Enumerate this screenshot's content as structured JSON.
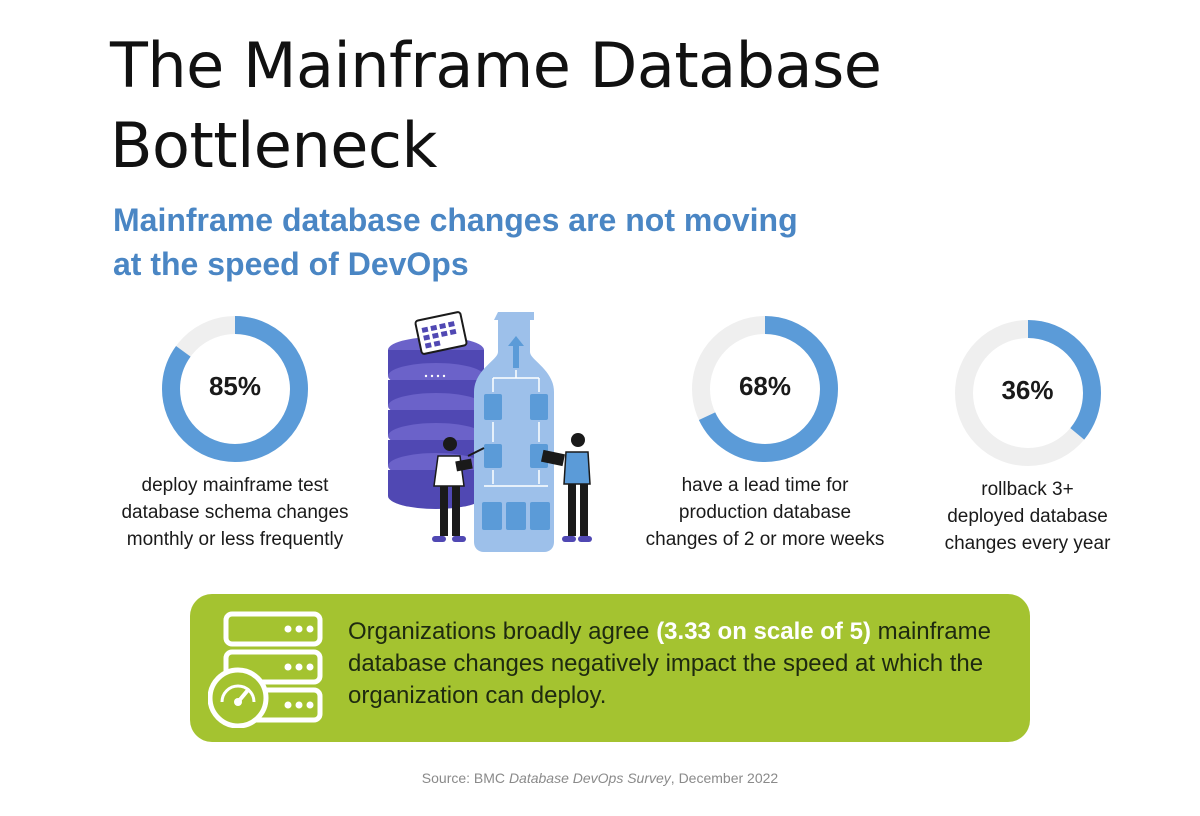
{
  "title_line1": "The Mainframe Database",
  "title_line2": "Bottleneck",
  "subtitle_line1": "Mainframe database changes are not moving",
  "subtitle_line2": "at the speed of DevOps",
  "colors": {
    "accent_blue": "#5b9bd8",
    "track_gray": "#efefef",
    "subtitle_blue": "#4a86c4",
    "banner_green": "#a4c330"
  },
  "stats": [
    {
      "value": 85,
      "label": "85%",
      "desc_lines": [
        "deploy mainframe test",
        "database schema changes",
        "monthly or less frequently"
      ]
    },
    {
      "value": 68,
      "label": "68%",
      "desc_lines": [
        "have a lead time for",
        "production database",
        "changes of 2 or more weeks"
      ]
    },
    {
      "value": 36,
      "label": "36%",
      "desc_lines": [
        "rollback 3+",
        "deployed database",
        "changes every year"
      ]
    }
  ],
  "banner": {
    "icon": "server-speedometer-icon",
    "text_before": "Organizations broadly agree ",
    "text_highlight": "(3.33 on scale of 5)",
    "text_after": " mainframe database changes negatively impact the speed at which the organization can deploy."
  },
  "source": {
    "prefix": "Source: BMC ",
    "italic": "Database DevOps Survey",
    "suffix": ", December 2022"
  },
  "illustration": {
    "icons": [
      "database-stack-icon",
      "bottle-flowchart-icon",
      "calendar-icon",
      "person-with-tablet-icon"
    ]
  }
}
